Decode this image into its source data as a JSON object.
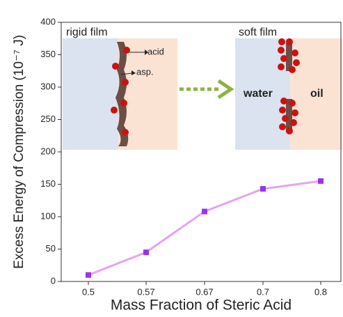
{
  "chart_data": {
    "type": "line",
    "x_label": "Mass Fraction of Steric Acid",
    "y_label": "Excess Energy of Compression (10⁻⁷ J)",
    "categories": [
      "0.5",
      "0.57",
      "0.67",
      "0.7",
      "0.8"
    ],
    "values": [
      10,
      45,
      108,
      143,
      155
    ],
    "color": "#e7a2f2",
    "marker_color": "#9933ee",
    "ylim": [
      0,
      400
    ],
    "yticks": [
      0,
      50,
      100,
      150,
      200,
      250,
      300,
      350,
      400
    ],
    "annotations": [
      "rigid film",
      "acid",
      "asp.",
      "soft film",
      "water",
      "oil"
    ]
  }
}
